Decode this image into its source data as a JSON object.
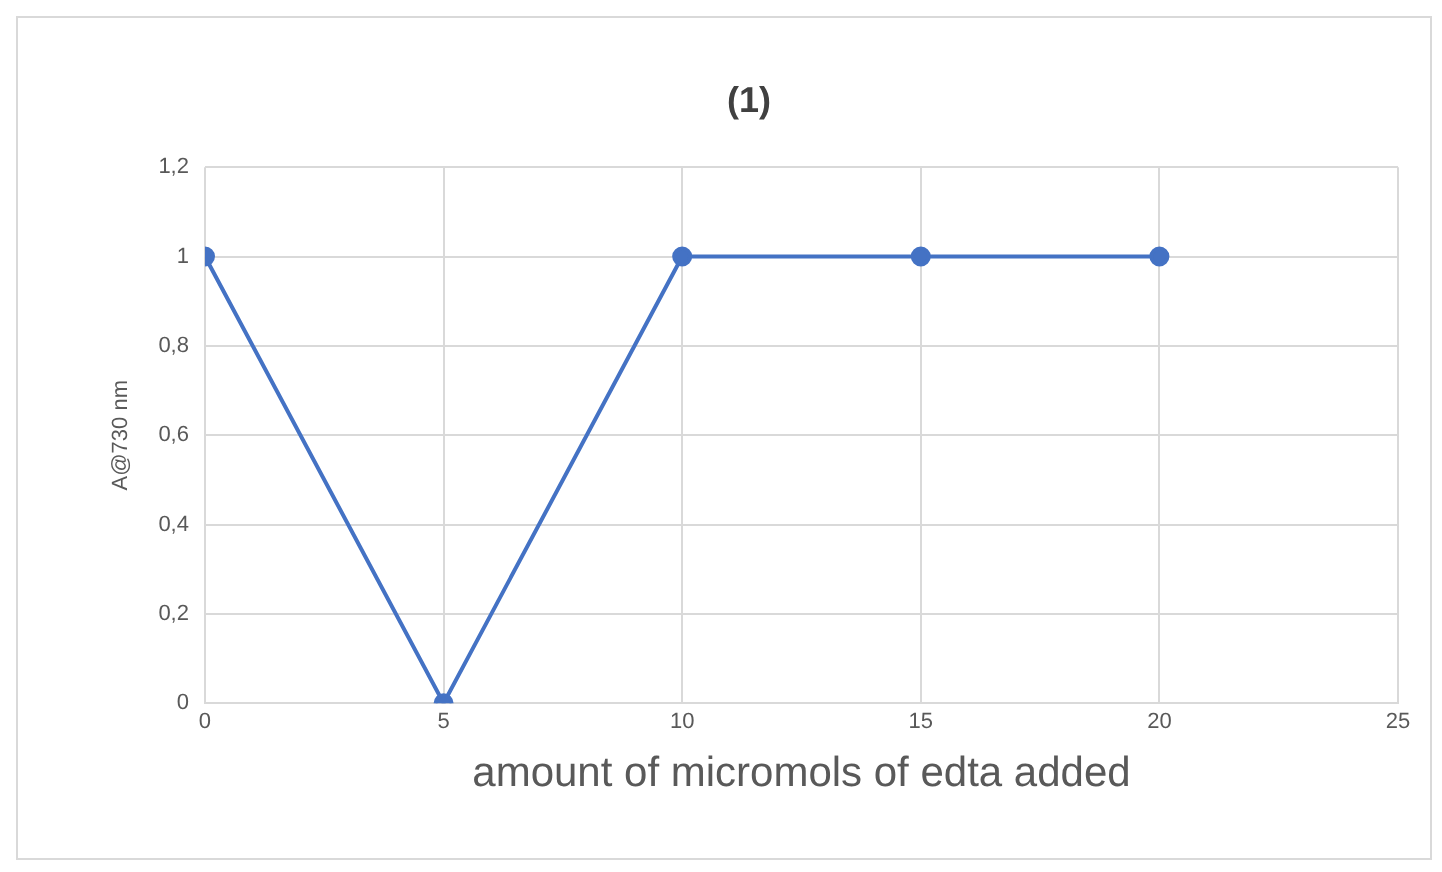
{
  "chart_data": {
    "type": "line",
    "title": "(1)",
    "xlabel": "amount of micromols of edta added",
    "ylabel": "A@730 nm",
    "x": [
      0,
      5,
      10,
      15,
      20
    ],
    "series": [
      {
        "color": "#4472c4",
        "values": [
          1,
          0,
          1,
          1,
          1
        ]
      }
    ],
    "xlim": [
      0,
      25
    ],
    "xticks": [
      0,
      5,
      10,
      15,
      20,
      25
    ],
    "ylim": [
      0,
      1.2
    ],
    "yticks": [
      {
        "value": 0,
        "label": "0"
      },
      {
        "value": 0.2,
        "label": "0,2"
      },
      {
        "value": 0.4,
        "label": "0,4"
      },
      {
        "value": 0.6,
        "label": "0,6"
      },
      {
        "value": 0.8,
        "label": "0,8"
      },
      {
        "value": 1,
        "label": "1"
      },
      {
        "value": 1.2,
        "label": "1,2"
      }
    ],
    "grid": true,
    "legend": false,
    "marker": "circle",
    "line_style": "solid"
  }
}
